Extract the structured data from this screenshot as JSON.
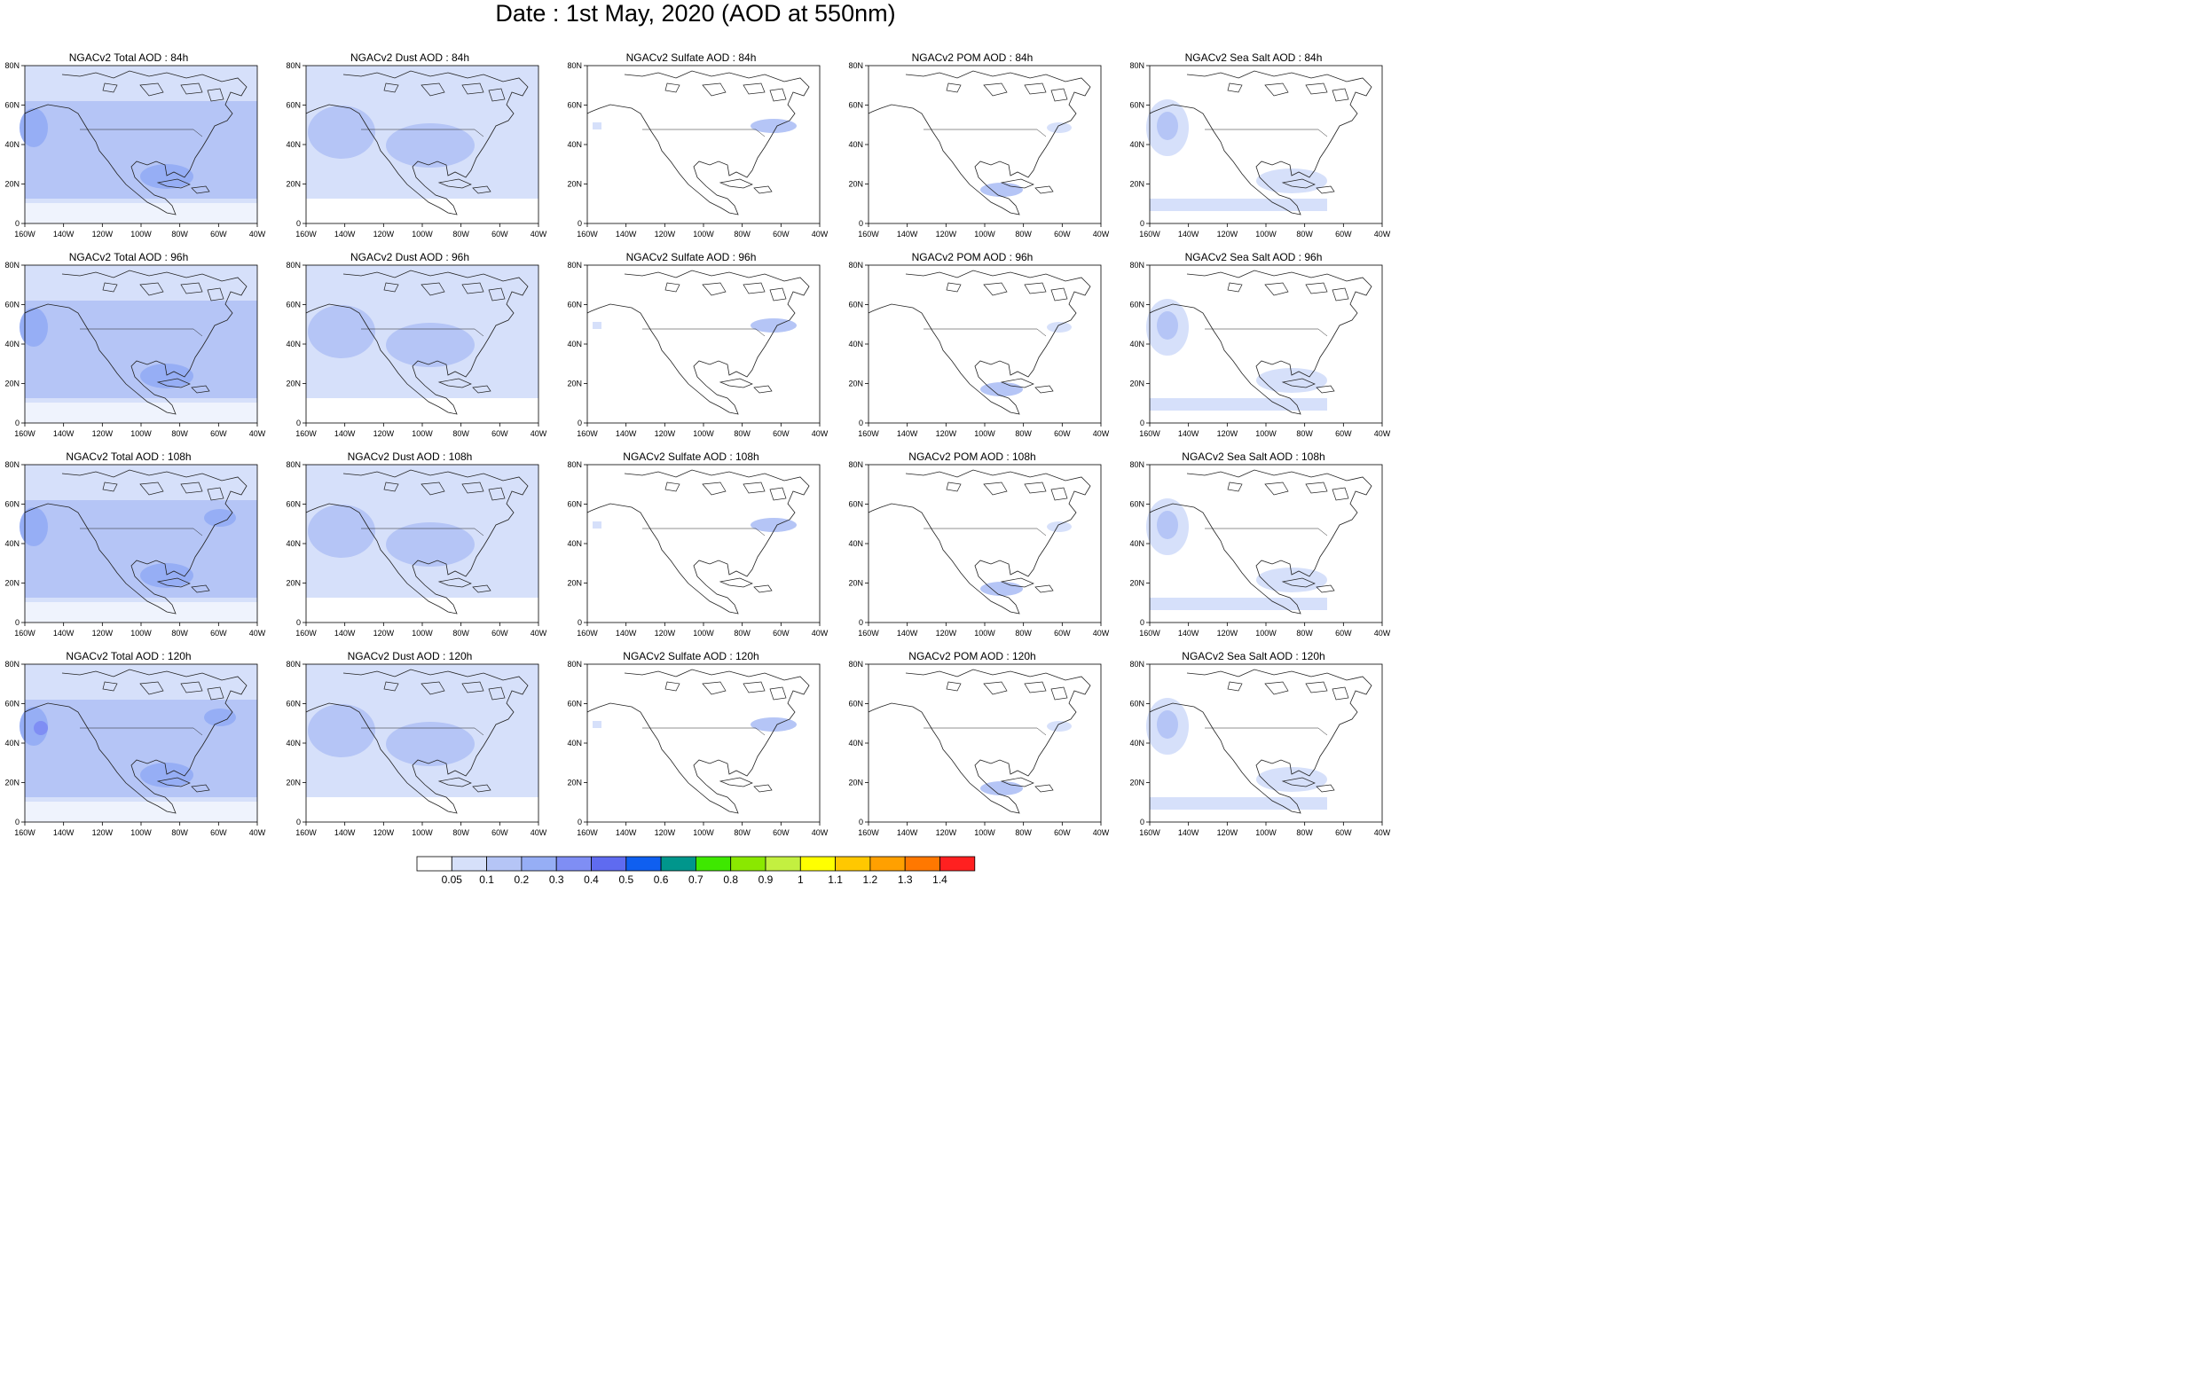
{
  "title": "Date : 1st May, 2020 (AOD at 550nm)",
  "lat_ticks": [
    "80N",
    "60N",
    "40N",
    "20N",
    "0"
  ],
  "lon_ticks": [
    "160W",
    "140W",
    "120W",
    "100W",
    "80W",
    "60W",
    "40W"
  ],
  "panel_titles": [
    [
      "NGACv2 Total AOD : 84h",
      "NGACv2 Dust AOD : 84h",
      "NGACv2 Sulfate AOD : 84h",
      "NGACv2 POM AOD : 84h",
      "NGACv2 Sea Salt AOD : 84h"
    ],
    [
      "NGACv2 Total AOD : 96h",
      "NGACv2 Dust AOD : 96h",
      "NGACv2 Sulfate AOD : 96h",
      "NGACv2 POM AOD : 96h",
      "NGACv2 Sea Salt AOD : 96h"
    ],
    [
      "NGACv2 Total AOD : 108h",
      "NGACv2 Dust AOD : 108h",
      "NGACv2 Sulfate AOD : 108h",
      "NGACv2 POM AOD : 108h",
      "NGACv2 Sea Salt AOD : 108h"
    ],
    [
      "NGACv2 Total AOD : 120h",
      "NGACv2 Dust AOD : 120h",
      "NGACv2 Sulfate AOD : 120h",
      "NGACv2 POM AOD : 120h",
      "NGACv2 Sea Salt  AOD : 120h"
    ]
  ],
  "colorbar": {
    "colors": [
      "#ffffff",
      "#d6e0fa",
      "#b5c5f6",
      "#96aef5",
      "#7f8ef4",
      "#5f6bf0",
      "#0f5ff0",
      "#00968c",
      "#3ee800",
      "#8ae800",
      "#c3f040",
      "#ffff00",
      "#ffc800",
      "#ffa000",
      "#ff7800",
      "#ff2020"
    ],
    "labels": [
      "0.05",
      "0.1",
      "0.2",
      "0.3",
      "0.4",
      "0.5",
      "0.6",
      "0.7",
      "0.8",
      "0.9",
      "1",
      "1.1",
      "1.2",
      "1.3",
      "1.4"
    ]
  },
  "field_colors": {
    "land": "#ffffff",
    "coast": "#222222",
    "low": "#d6e0fa",
    "mid": "#b5c5f6",
    "high": "#96aef5",
    "peak": "#7f8ef4"
  }
}
